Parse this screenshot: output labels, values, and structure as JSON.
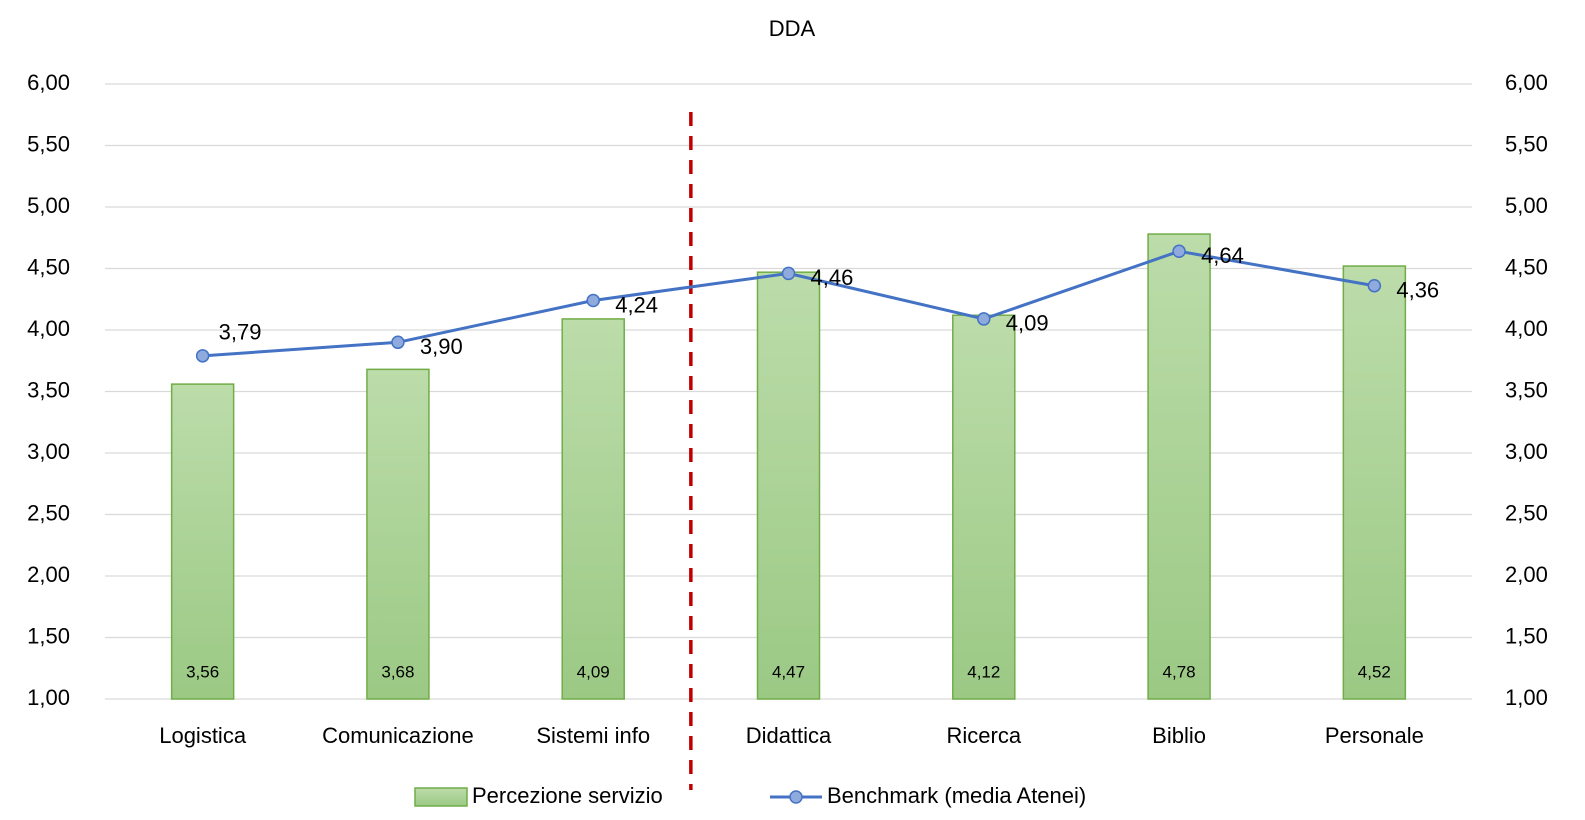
{
  "chart_data": {
    "type": "bar_line",
    "title": "DDA",
    "categories": [
      "Logistica",
      "Comunicazione",
      "Sistemi info",
      "Didattica",
      "Ricerca",
      "Biblio",
      "Personale"
    ],
    "series": [
      {
        "name": "Percezione servizio",
        "type": "bar",
        "color": "#a9d18e",
        "border": "#70ad47",
        "values": [
          3.56,
          3.68,
          4.09,
          4.47,
          4.12,
          4.78,
          4.52
        ],
        "value_labels": [
          "3,56",
          "3,68",
          "4,09",
          "4,47",
          "4,12",
          "4,78",
          "4,52"
        ]
      },
      {
        "name": "Benchmark (media Atenei)",
        "type": "line",
        "axis": "y2",
        "color": "#4472c4",
        "marker_color": "#8faadc",
        "values": [
          3.79,
          3.9,
          4.24,
          4.46,
          4.09,
          4.64,
          4.36
        ],
        "value_labels": [
          "3,79",
          "3,90",
          "4,24",
          "4,46",
          "4,09",
          "4,64",
          "4,36"
        ]
      }
    ],
    "ylim": [
      1,
      6
    ],
    "yticks": [
      {
        "value": 1,
        "label": "1,00"
      },
      {
        "value": 1.5,
        "label": "1,50"
      },
      {
        "value": 2,
        "label": "2,00"
      },
      {
        "value": 2.5,
        "label": "2,50"
      },
      {
        "value": 3,
        "label": "3,00"
      },
      {
        "value": 3.5,
        "label": "3,50"
      },
      {
        "value": 4,
        "label": "4,00"
      },
      {
        "value": 4.5,
        "label": "4,50"
      },
      {
        "value": 5,
        "label": "5,00"
      },
      {
        "value": 5.5,
        "label": "5,50"
      },
      {
        "value": 6,
        "label": "6,00"
      }
    ],
    "y2lim": [
      1,
      6
    ],
    "y2ticks": [
      {
        "value": 1,
        "label": "1,00"
      },
      {
        "value": 1.5,
        "label": "1,50"
      },
      {
        "value": 2,
        "label": "2,00"
      },
      {
        "value": 2.5,
        "label": "2,50"
      },
      {
        "value": 3,
        "label": "3,00"
      },
      {
        "value": 3.5,
        "label": "3,50"
      },
      {
        "value": 4,
        "label": "4,00"
      },
      {
        "value": 4.5,
        "label": "4,50"
      },
      {
        "value": 5,
        "label": "5,00"
      },
      {
        "value": 5.5,
        "label": "5,50"
      },
      {
        "value": 6,
        "label": "6,00"
      }
    ],
    "grid": true,
    "legend": "bottom"
  }
}
